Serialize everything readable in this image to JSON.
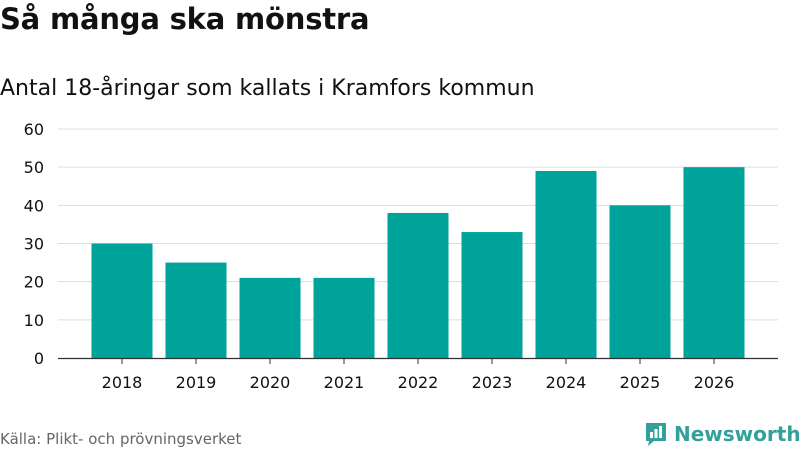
{
  "colors": {
    "bar": "#00a399",
    "grid": "#dddddd",
    "axis": "#333333",
    "text": "#111111",
    "source_text": "#666666",
    "brand": "#34a09a"
  },
  "header": {
    "title": "Så många ska mönstra",
    "subtitle": "Antal 18-åringar som kallats i Kramfors kommun"
  },
  "footer": {
    "source": "Källa: Plikt- och prövningsverket",
    "brand_name": "Newsworthy",
    "brand_icon": "newsworthy-logo-icon"
  },
  "chart_data": {
    "type": "bar",
    "title": "Så många ska mönstra",
    "subtitle": "Antal 18-åringar som kallats i Kramfors kommun",
    "xlabel": "",
    "ylabel": "",
    "categories": [
      "2018",
      "2019",
      "2020",
      "2021",
      "2022",
      "2023",
      "2024",
      "2025",
      "2026"
    ],
    "values": [
      30,
      25,
      21,
      21,
      38,
      33,
      49,
      40,
      50
    ],
    "ylim": [
      0,
      60
    ],
    "yticks": [
      0,
      10,
      20,
      30,
      40,
      50,
      60
    ],
    "grid": true,
    "legend": "none"
  }
}
